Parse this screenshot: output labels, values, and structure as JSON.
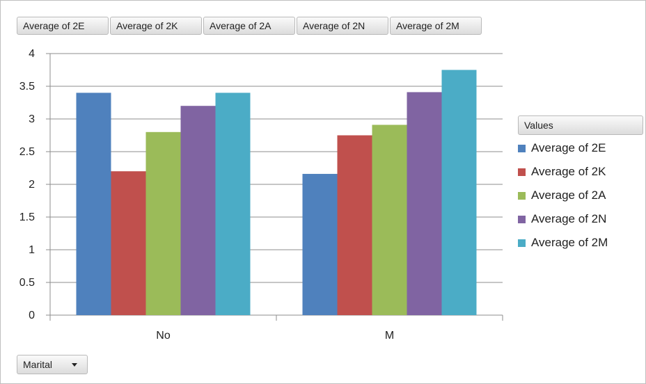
{
  "field_buttons": [
    "Average of 2E",
    "Average of 2K",
    "Average of 2A",
    "Average of 2N",
    "Average of 2M"
  ],
  "legend": {
    "title": "Values"
  },
  "filter": {
    "label": "Marital"
  },
  "chart_data": {
    "type": "bar",
    "categories": [
      "No",
      "M"
    ],
    "series": [
      {
        "name": "Average of 2E",
        "values": [
          3.4,
          2.16
        ],
        "color": "#4f81bd"
      },
      {
        "name": "Average of 2K",
        "values": [
          2.2,
          2.75
        ],
        "color": "#c0504d"
      },
      {
        "name": "Average of 2A",
        "values": [
          2.8,
          2.91
        ],
        "color": "#9bbb59"
      },
      {
        "name": "Average of 2N",
        "values": [
          3.2,
          3.41
        ],
        "color": "#8064a2"
      },
      {
        "name": "Average of 2M",
        "values": [
          3.4,
          3.75
        ],
        "color": "#4bacc6"
      }
    ],
    "ylim": [
      0,
      4
    ],
    "yticks": [
      "0",
      "0.5",
      "1",
      "1.5",
      "2",
      "2.5",
      "3",
      "3.5",
      "4"
    ],
    "grid": true,
    "legend_position": "right"
  }
}
